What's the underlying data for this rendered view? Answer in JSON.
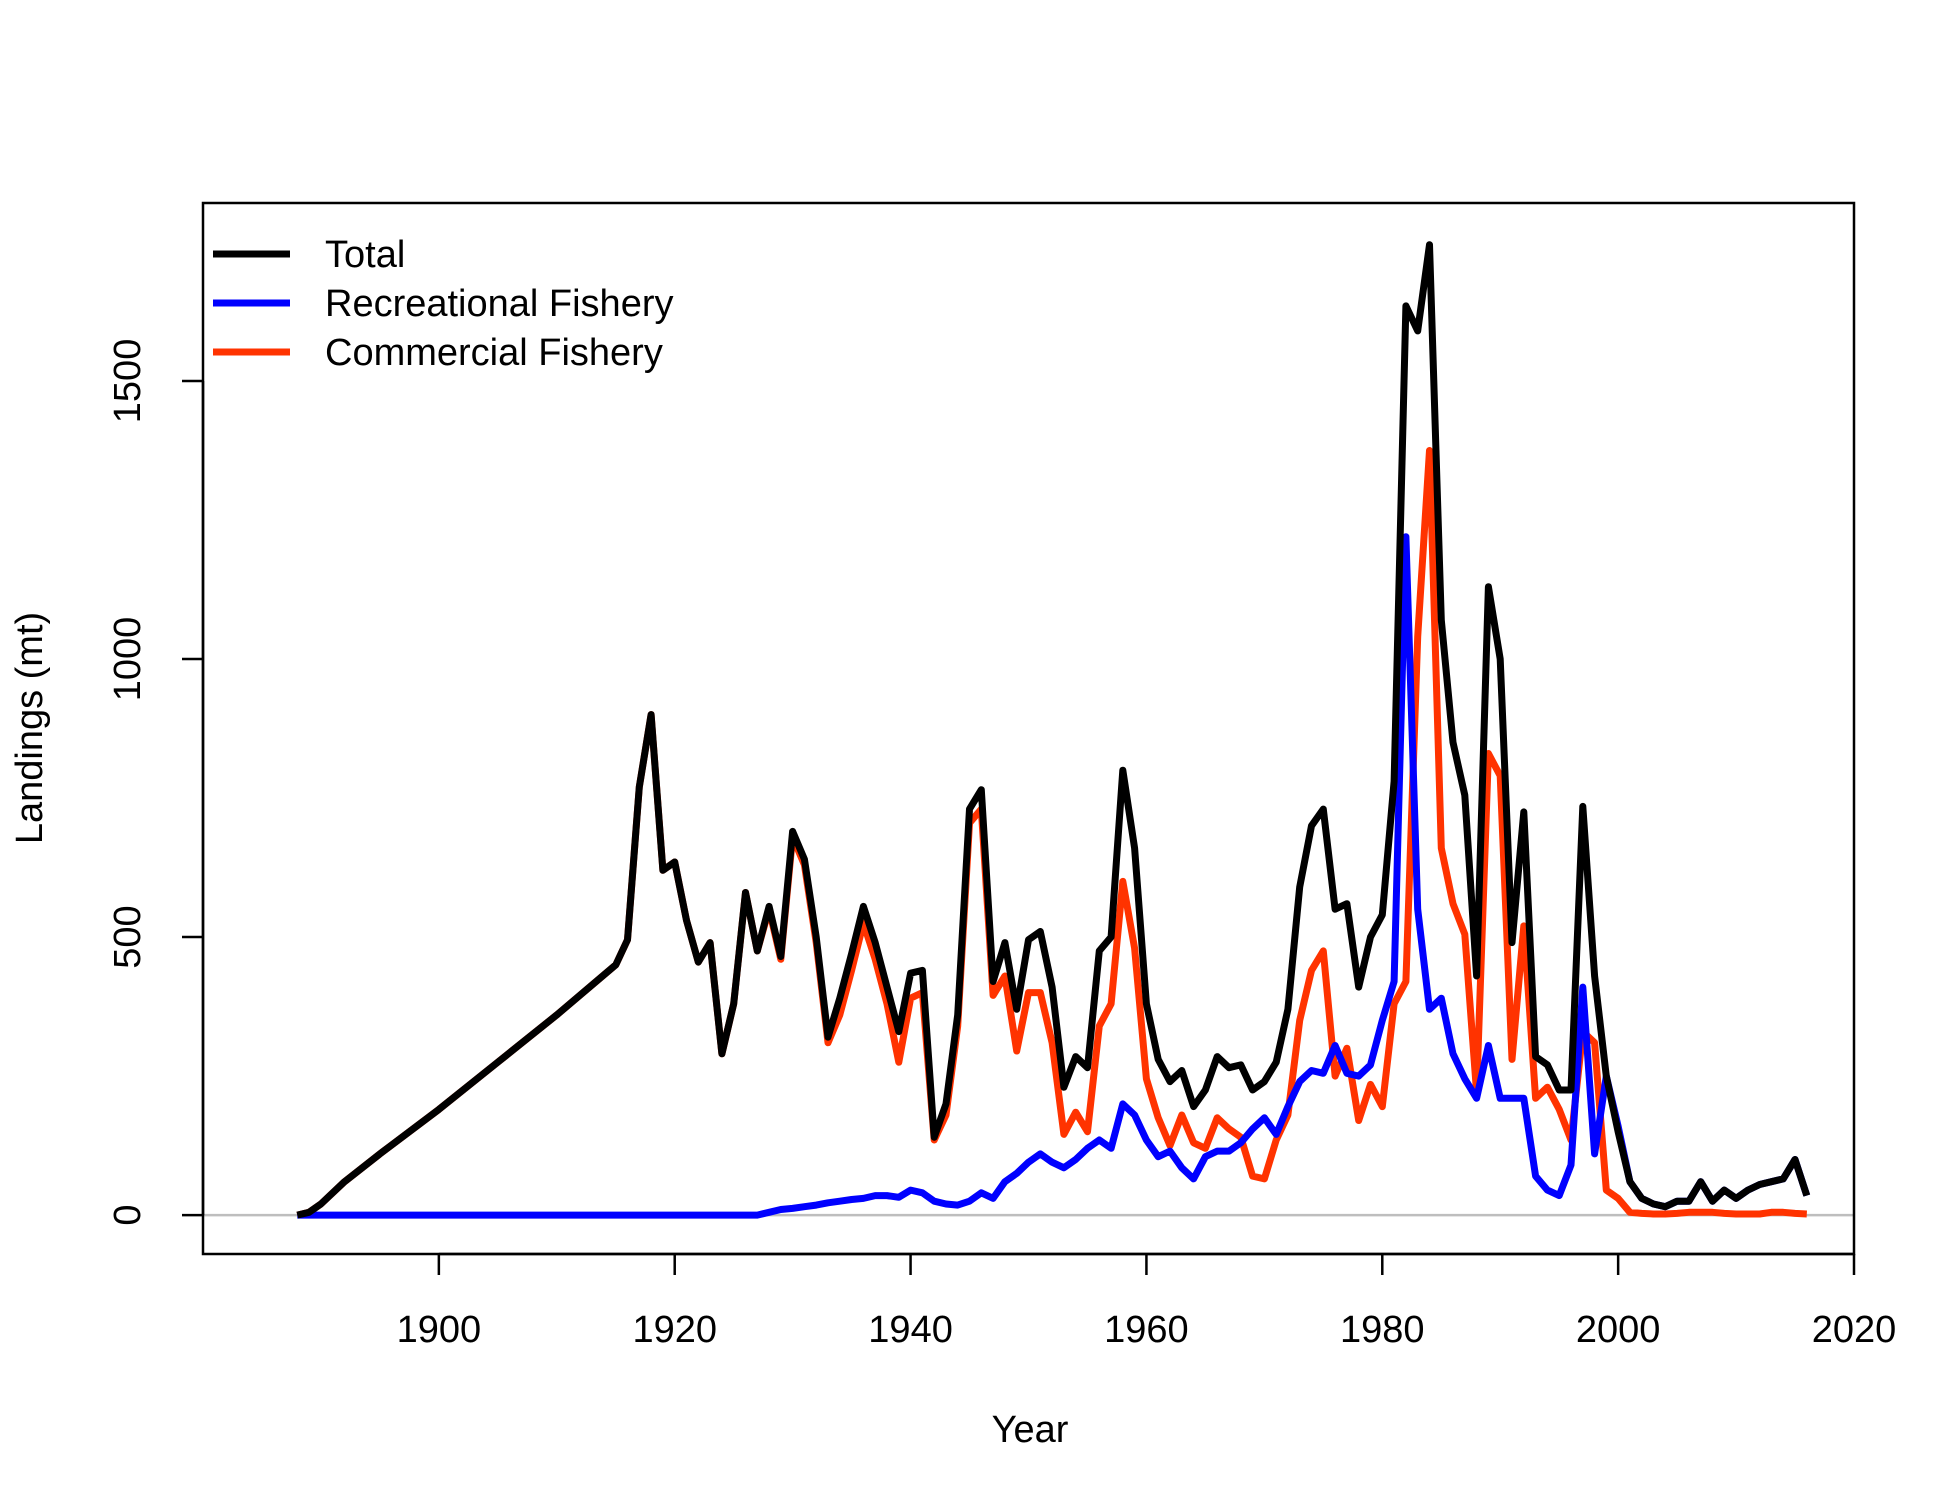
{
  "chart_data": {
    "type": "line",
    "title": "",
    "xlabel": "Year",
    "ylabel": "Landings (mt)",
    "xlim": [
      1880,
      2020
    ],
    "ylim": [
      -70,
      1820
    ],
    "xticks": [
      1900,
      1920,
      1940,
      1960,
      1980,
      2000,
      2020
    ],
    "xtick_labels": [
      "1900",
      "1920",
      "1940",
      "1960",
      "1980",
      "2000",
      "2020"
    ],
    "yticks": [
      0,
      500,
      1000,
      1500
    ],
    "ytick_labels": [
      "0",
      "500",
      "1000",
      "1500"
    ],
    "reference_line": {
      "y": 0,
      "color": "#bebebe"
    },
    "grid": false,
    "legend_position": "top-left",
    "series": [
      {
        "name": "Total",
        "color": "#000000",
        "points": [
          [
            1888,
            0
          ],
          [
            1889,
            5
          ],
          [
            1890,
            20
          ],
          [
            1892,
            60
          ],
          [
            1895,
            110
          ],
          [
            1900,
            190
          ],
          [
            1905,
            275
          ],
          [
            1910,
            360
          ],
          [
            1915,
            450
          ],
          [
            1916,
            495
          ],
          [
            1917,
            770
          ],
          [
            1918,
            900
          ],
          [
            1919,
            620
          ],
          [
            1920,
            635
          ],
          [
            1921,
            530
          ],
          [
            1922,
            455
          ],
          [
            1923,
            490
          ],
          [
            1924,
            290
          ],
          [
            1925,
            380
          ],
          [
            1926,
            580
          ],
          [
            1927,
            475
          ],
          [
            1928,
            555
          ],
          [
            1929,
            465
          ],
          [
            1930,
            690
          ],
          [
            1931,
            640
          ],
          [
            1932,
            500
          ],
          [
            1933,
            320
          ],
          [
            1934,
            390
          ],
          [
            1935,
            470
          ],
          [
            1936,
            555
          ],
          [
            1937,
            490
          ],
          [
            1938,
            410
          ],
          [
            1939,
            330
          ],
          [
            1940,
            435
          ],
          [
            1941,
            440
          ],
          [
            1942,
            140
          ],
          [
            1943,
            200
          ],
          [
            1944,
            360
          ],
          [
            1945,
            730
          ],
          [
            1946,
            765
          ],
          [
            1947,
            420
          ],
          [
            1948,
            490
          ],
          [
            1949,
            370
          ],
          [
            1950,
            495
          ],
          [
            1951,
            510
          ],
          [
            1952,
            410
          ],
          [
            1953,
            230
          ],
          [
            1954,
            285
          ],
          [
            1955,
            265
          ],
          [
            1956,
            475
          ],
          [
            1957,
            500
          ],
          [
            1958,
            800
          ],
          [
            1959,
            660
          ],
          [
            1960,
            380
          ],
          [
            1961,
            280
          ],
          [
            1962,
            240
          ],
          [
            1963,
            260
          ],
          [
            1964,
            195
          ],
          [
            1965,
            225
          ],
          [
            1966,
            285
          ],
          [
            1967,
            265
          ],
          [
            1968,
            270
          ],
          [
            1969,
            225
          ],
          [
            1970,
            240
          ],
          [
            1971,
            275
          ],
          [
            1972,
            370
          ],
          [
            1973,
            590
          ],
          [
            1974,
            700
          ],
          [
            1975,
            730
          ],
          [
            1976,
            550
          ],
          [
            1977,
            560
          ],
          [
            1978,
            410
          ],
          [
            1979,
            500
          ],
          [
            1980,
            540
          ],
          [
            1981,
            780
          ],
          [
            1982,
            1635
          ],
          [
            1983,
            1590
          ],
          [
            1984,
            1745
          ],
          [
            1985,
            1070
          ],
          [
            1986,
            850
          ],
          [
            1987,
            755
          ],
          [
            1988,
            430
          ],
          [
            1989,
            1130
          ],
          [
            1990,
            1000
          ],
          [
            1991,
            490
          ],
          [
            1992,
            725
          ],
          [
            1993,
            285
          ],
          [
            1994,
            270
          ],
          [
            1995,
            225
          ],
          [
            1996,
            225
          ],
          [
            1997,
            735
          ],
          [
            1998,
            430
          ],
          [
            1999,
            250
          ],
          [
            2000,
            150
          ],
          [
            2001,
            60
          ],
          [
            2002,
            30
          ],
          [
            2003,
            20
          ],
          [
            2004,
            15
          ],
          [
            2005,
            25
          ],
          [
            2006,
            25
          ],
          [
            2007,
            60
          ],
          [
            2008,
            25
          ],
          [
            2009,
            45
          ],
          [
            2010,
            30
          ],
          [
            2011,
            45
          ],
          [
            2012,
            55
          ],
          [
            2013,
            60
          ],
          [
            2014,
            65
          ],
          [
            2015,
            100
          ],
          [
            2016,
            35
          ]
        ]
      },
      {
        "name": "Recreational Fishery",
        "color": "#0000ff",
        "points": [
          [
            1888,
            0
          ],
          [
            1927,
            0
          ],
          [
            1928,
            5
          ],
          [
            1929,
            10
          ],
          [
            1930,
            12
          ],
          [
            1931,
            15
          ],
          [
            1932,
            18
          ],
          [
            1933,
            22
          ],
          [
            1934,
            25
          ],
          [
            1935,
            28
          ],
          [
            1936,
            30
          ],
          [
            1937,
            35
          ],
          [
            1938,
            35
          ],
          [
            1939,
            32
          ],
          [
            1940,
            45
          ],
          [
            1941,
            40
          ],
          [
            1942,
            25
          ],
          [
            1943,
            20
          ],
          [
            1944,
            18
          ],
          [
            1945,
            25
          ],
          [
            1946,
            40
          ],
          [
            1947,
            30
          ],
          [
            1948,
            60
          ],
          [
            1949,
            75
          ],
          [
            1950,
            95
          ],
          [
            1951,
            110
          ],
          [
            1952,
            95
          ],
          [
            1953,
            85
          ],
          [
            1954,
            100
          ],
          [
            1955,
            120
          ],
          [
            1956,
            135
          ],
          [
            1957,
            120
          ],
          [
            1958,
            200
          ],
          [
            1959,
            180
          ],
          [
            1960,
            135
          ],
          [
            1961,
            105
          ],
          [
            1962,
            115
          ],
          [
            1963,
            85
          ],
          [
            1964,
            65
          ],
          [
            1965,
            105
          ],
          [
            1966,
            115
          ],
          [
            1967,
            115
          ],
          [
            1968,
            130
          ],
          [
            1969,
            155
          ],
          [
            1970,
            175
          ],
          [
            1971,
            145
          ],
          [
            1972,
            195
          ],
          [
            1973,
            240
          ],
          [
            1974,
            260
          ],
          [
            1975,
            255
          ],
          [
            1976,
            305
          ],
          [
            1977,
            255
          ],
          [
            1978,
            250
          ],
          [
            1979,
            270
          ],
          [
            1980,
            350
          ],
          [
            1981,
            420
          ],
          [
            1982,
            1220
          ],
          [
            1983,
            550
          ],
          [
            1984,
            370
          ],
          [
            1985,
            390
          ],
          [
            1986,
            290
          ],
          [
            1987,
            245
          ],
          [
            1988,
            210
          ],
          [
            1989,
            305
          ],
          [
            1990,
            210
          ],
          [
            1991,
            210
          ],
          [
            1992,
            210
          ],
          [
            1993,
            70
          ],
          [
            1994,
            45
          ],
          [
            1995,
            35
          ],
          [
            1996,
            90
          ],
          [
            1997,
            410
          ],
          [
            1998,
            110
          ],
          [
            1999,
            250
          ],
          [
            2000,
            160
          ],
          [
            2001,
            60
          ],
          [
            2002,
            30
          ],
          [
            2003,
            20
          ],
          [
            2004,
            15
          ],
          [
            2005,
            25
          ],
          [
            2006,
            25
          ],
          [
            2007,
            60
          ],
          [
            2008,
            25
          ],
          [
            2009,
            45
          ],
          [
            2010,
            30
          ],
          [
            2011,
            45
          ],
          [
            2012,
            55
          ],
          [
            2013,
            60
          ],
          [
            2014,
            65
          ],
          [
            2015,
            100
          ],
          [
            2016,
            35
          ]
        ]
      },
      {
        "name": "Commercial Fishery",
        "color": "#ff3300",
        "points": [
          [
            1888,
            0
          ],
          [
            1889,
            5
          ],
          [
            1890,
            20
          ],
          [
            1892,
            60
          ],
          [
            1895,
            110
          ],
          [
            1900,
            190
          ],
          [
            1905,
            275
          ],
          [
            1910,
            360
          ],
          [
            1915,
            450
          ],
          [
            1916,
            495
          ],
          [
            1917,
            770
          ],
          [
            1918,
            900
          ],
          [
            1919,
            620
          ],
          [
            1920,
            635
          ],
          [
            1921,
            530
          ],
          [
            1922,
            455
          ],
          [
            1923,
            490
          ],
          [
            1924,
            290
          ],
          [
            1925,
            380
          ],
          [
            1926,
            580
          ],
          [
            1927,
            475
          ],
          [
            1928,
            550
          ],
          [
            1929,
            460
          ],
          [
            1930,
            680
          ],
          [
            1931,
            630
          ],
          [
            1932,
            490
          ],
          [
            1933,
            310
          ],
          [
            1934,
            360
          ],
          [
            1935,
            440
          ],
          [
            1936,
            525
          ],
          [
            1937,
            460
          ],
          [
            1938,
            380
          ],
          [
            1939,
            275
          ],
          [
            1940,
            390
          ],
          [
            1941,
            400
          ],
          [
            1942,
            135
          ],
          [
            1943,
            180
          ],
          [
            1944,
            340
          ],
          [
            1945,
            705
          ],
          [
            1946,
            730
          ],
          [
            1947,
            395
          ],
          [
            1948,
            430
          ],
          [
            1949,
            295
          ],
          [
            1950,
            400
          ],
          [
            1951,
            400
          ],
          [
            1952,
            310
          ],
          [
            1953,
            145
          ],
          [
            1954,
            185
          ],
          [
            1955,
            150
          ],
          [
            1956,
            340
          ],
          [
            1957,
            380
          ],
          [
            1958,
            600
          ],
          [
            1959,
            480
          ],
          [
            1960,
            245
          ],
          [
            1961,
            175
          ],
          [
            1962,
            125
          ],
          [
            1963,
            180
          ],
          [
            1964,
            130
          ],
          [
            1965,
            120
          ],
          [
            1966,
            175
          ],
          [
            1967,
            155
          ],
          [
            1968,
            140
          ],
          [
            1969,
            70
          ],
          [
            1970,
            65
          ],
          [
            1971,
            135
          ],
          [
            1972,
            180
          ],
          [
            1973,
            350
          ],
          [
            1974,
            440
          ],
          [
            1975,
            475
          ],
          [
            1976,
            250
          ],
          [
            1977,
            300
          ],
          [
            1978,
            170
          ],
          [
            1979,
            235
          ],
          [
            1980,
            195
          ],
          [
            1981,
            380
          ],
          [
            1982,
            420
          ],
          [
            1983,
            1040
          ],
          [
            1984,
            1375
          ],
          [
            1985,
            660
          ],
          [
            1986,
            560
          ],
          [
            1987,
            505
          ],
          [
            1988,
            220
          ],
          [
            1989,
            830
          ],
          [
            1990,
            790
          ],
          [
            1991,
            280
          ],
          [
            1992,
            520
          ],
          [
            1993,
            210
          ],
          [
            1994,
            230
          ],
          [
            1995,
            190
          ],
          [
            1996,
            135
          ],
          [
            1997,
            330
          ],
          [
            1998,
            310
          ],
          [
            1999,
            45
          ],
          [
            2000,
            30
          ],
          [
            2001,
            5
          ],
          [
            2002,
            3
          ],
          [
            2003,
            2
          ],
          [
            2004,
            2
          ],
          [
            2005,
            3
          ],
          [
            2006,
            5
          ],
          [
            2007,
            5
          ],
          [
            2008,
            5
          ],
          [
            2009,
            3
          ],
          [
            2010,
            2
          ],
          [
            2011,
            2
          ],
          [
            2012,
            2
          ],
          [
            2013,
            5
          ],
          [
            2014,
            5
          ],
          [
            2015,
            3
          ],
          [
            2016,
            2
          ]
        ]
      }
    ]
  }
}
